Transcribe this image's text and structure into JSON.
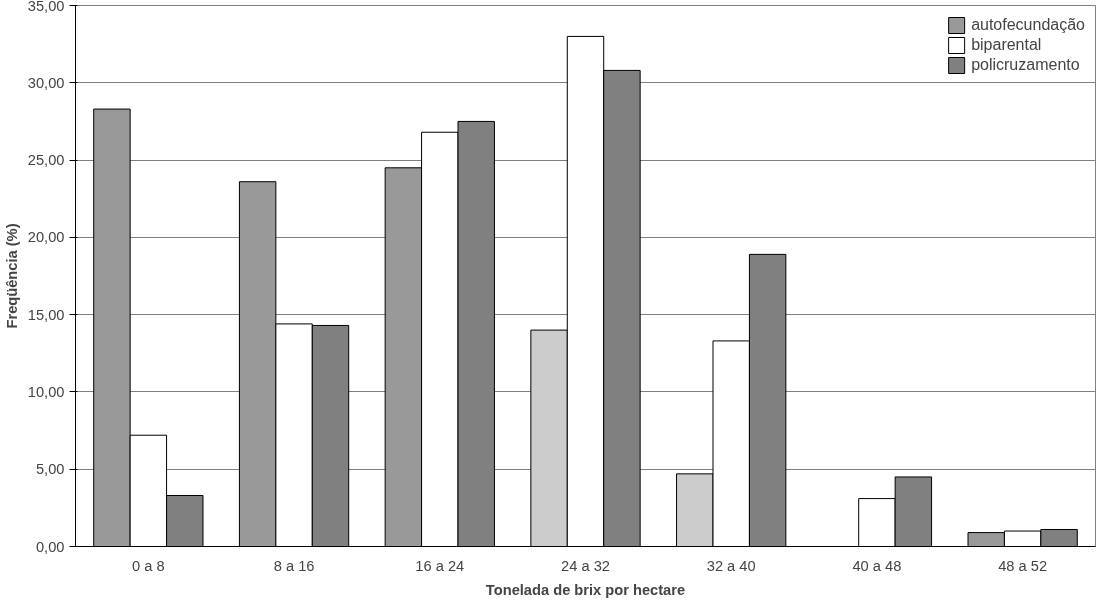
{
  "chart_data": {
    "type": "bar",
    "xlabel": "Tonelada de brix por hectare",
    "ylabel": "Freqüência (%)",
    "categories": [
      "0 a 8",
      "8 a 16",
      "16 a 24",
      "24 a 32",
      "32 a 40",
      "40 a 48",
      "48 a 52"
    ],
    "series": [
      {
        "name": "autofecundação",
        "color": "#999999",
        "colors": [
          "#999999",
          "#999999",
          "#999999",
          "#cccccc",
          "#cccccc",
          "#999999",
          "#999999"
        ],
        "values": [
          28.3,
          23.6,
          24.5,
          14.0,
          4.7,
          0,
          0.9
        ]
      },
      {
        "name": "biparental",
        "color": "#ffffff",
        "values": [
          7.2,
          14.4,
          26.8,
          33.0,
          13.3,
          3.1,
          1.0
        ]
      },
      {
        "name": "policruzamento",
        "color": "#808080",
        "values": [
          3.3,
          14.3,
          27.5,
          30.8,
          18.9,
          4.5,
          1.1
        ]
      }
    ],
    "ylim": [
      0,
      35
    ],
    "yticks": [
      {
        "value": 0,
        "label": "0,00"
      },
      {
        "value": 5,
        "label": "5,00"
      },
      {
        "value": 10,
        "label": "10,00"
      },
      {
        "value": 15,
        "label": "15,00"
      },
      {
        "value": 20,
        "label": "20,00"
      },
      {
        "value": 25,
        "label": "25,00"
      },
      {
        "value": 30,
        "label": "30,00"
      },
      {
        "value": 35,
        "label": "35,00"
      }
    ],
    "grid": "y",
    "legend": "top right"
  }
}
